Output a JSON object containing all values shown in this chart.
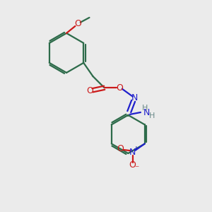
{
  "bg_color": "#ebebeb",
  "bond_color": "#2d6b4a",
  "nitrogen_color": "#2020cc",
  "oxygen_color": "#cc1a1a",
  "h_color": "#6a8a8a",
  "line_width": 1.6,
  "font_size": 8.5,
  "fig_size": [
    3.0,
    3.0
  ],
  "dpi": 100,
  "xlim": [
    0,
    10
  ],
  "ylim": [
    0,
    10
  ]
}
